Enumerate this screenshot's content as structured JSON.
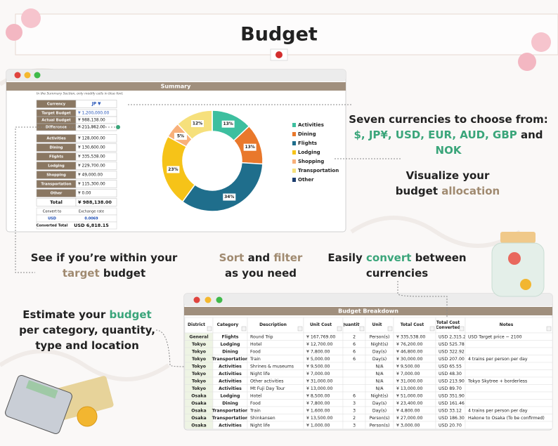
{
  "header": {
    "title": "Budget"
  },
  "summary": {
    "title": "Summary",
    "note": "In the Summary Section, only modify cells in blue font.",
    "rows": [
      [
        "Currency",
        "JP ¥"
      ],
      [
        "Target Budget",
        "¥ 1,200,000.00"
      ],
      [
        "Actual Budget",
        "¥ 988,138.00"
      ],
      [
        "Difference",
        "¥ 211,862.00"
      ],
      [
        "Activities",
        "¥ 128,000.00"
      ],
      [
        "Dining",
        "¥ 130,600.00"
      ],
      [
        "Flights",
        "¥ 335,538.00"
      ],
      [
        "Lodging",
        "¥ 229,700.00"
      ],
      [
        "Shopping",
        "¥ 49,000.00"
      ],
      [
        "Transportation",
        "¥ 115,300.00"
      ],
      [
        "Other",
        "¥ 0.00"
      ],
      [
        "Total",
        "¥ 988,138.00"
      ]
    ],
    "convert": {
      "header": [
        "Convert to",
        "Exchange rate"
      ],
      "row": [
        "USD",
        "0.0069"
      ],
      "total": [
        "Converted Total",
        "USD 6,818.15"
      ]
    }
  },
  "donut": {
    "type": "pie",
    "categories": [
      "Activities",
      "Dining",
      "Flights",
      "Lodging",
      "Shopping",
      "Transportation",
      "Other"
    ],
    "values": [
      13,
      13,
      34,
      23,
      5,
      12,
      0
    ],
    "value_labels": [
      "13%",
      "13%",
      "34%",
      "23%",
      "5%",
      "12%",
      null
    ],
    "colors": [
      "#3dbf9f",
      "#e9782b",
      "#1f6e8c",
      "#f6c318",
      "#f8b07a",
      "#f6e07c",
      "#1c3d6e"
    ]
  },
  "callouts": [
    {
      "lines": [
        [
          {
            "text": "Seven currencies to choose from:",
            "color": "#222222"
          }
        ],
        [
          {
            "text": "$, JP¥, USD, EUR, AUD, GBP",
            "color": "#3aa57a"
          },
          {
            "text": " and",
            "color": "#222222"
          }
        ],
        [
          {
            "text": "NOK",
            "color": "#3aa57a"
          }
        ]
      ]
    },
    {
      "lines": [
        [
          {
            "text": "Visualize your",
            "color": "#222222"
          }
        ],
        [
          {
            "text": "budget ",
            "color": "#222222"
          },
          {
            "text": "allocation",
            "color": "#a08a70"
          }
        ]
      ]
    },
    {
      "lines": [
        [
          {
            "text": "See if you’re within your",
            "color": "#222222"
          }
        ],
        [
          {
            "text": "target",
            "color": "#a08a70"
          },
          {
            "text": " budget",
            "color": "#222222"
          }
        ]
      ]
    },
    {
      "lines": [
        [
          {
            "text": "Sort",
            "color": "#a08a70"
          },
          {
            "text": " and ",
            "color": "#222222"
          },
          {
            "text": "filter",
            "color": "#a08a70"
          }
        ],
        [
          {
            "text": "as you need",
            "color": "#222222"
          }
        ]
      ]
    },
    {
      "lines": [
        [
          {
            "text": "Easily ",
            "color": "#222222"
          },
          {
            "text": "convert",
            "color": "#3aa57a"
          },
          {
            "text": " between",
            "color": "#222222"
          }
        ],
        [
          {
            "text": "currencies",
            "color": "#222222"
          }
        ]
      ]
    },
    {
      "lines": [
        [
          {
            "text": "Estimate your ",
            "color": "#222222"
          },
          {
            "text": "budget",
            "color": "#3aa57a"
          }
        ],
        [
          {
            "text": "per category, quantity,",
            "color": "#222222"
          }
        ],
        [
          {
            "text": "type and location",
            "color": "#222222"
          }
        ]
      ]
    }
  ],
  "breakdown": {
    "title": "Budget Breakdown",
    "columns": [
      "District",
      "Category",
      "Description",
      "Unit Cost",
      "Quantity",
      "Unit",
      "Total Cost",
      "Total Cost (Converted)",
      "Notes"
    ],
    "rows": [
      [
        "General",
        "Flights",
        "Round Trip",
        "¥ 167,769.00",
        "2",
        "Person(s)",
        "¥ 335,538.00",
        "USD 2,315.21",
        "USD Target price ~ 2100"
      ],
      [
        "Tokyo",
        "Lodging",
        "Hotel",
        "¥ 12,700.00",
        "6",
        "Night(s)",
        "¥ 76,200.00",
        "USD 525.78",
        null
      ],
      [
        "Tokyo",
        "Dining",
        "Food",
        "¥ 7,800.00",
        "6",
        "Day(s)",
        "¥ 46,800.00",
        "USD 322.92",
        null
      ],
      [
        "Tokyo",
        "Transportation",
        "Train",
        "¥ 5,000.00",
        "6",
        "Day(s)",
        "¥ 30,000.00",
        "USD 207.00",
        "4 trains per person per day"
      ],
      [
        "Tokyo",
        "Activities",
        "Shrines & museums",
        "¥ 9,500.00",
        null,
        "N/A",
        "¥ 9,500.00",
        "USD 65.55",
        null
      ],
      [
        "Tokyo",
        "Activities",
        "Night life",
        "¥ 7,000.00",
        null,
        "N/A",
        "¥ 7,000.00",
        "USD 48.30",
        null
      ],
      [
        "Tokyo",
        "Activities",
        "Other activities",
        "¥ 31,000.00",
        null,
        "N/A",
        "¥ 31,000.00",
        "USD 213.90",
        "Tokyo Skytree + borderless"
      ],
      [
        "Tokyo",
        "Activities",
        "Mt Fuji Day Tour",
        "¥ 13,000.00",
        null,
        "N/A",
        "¥ 13,000.00",
        "USD 89.70",
        null
      ],
      [
        "Osaka",
        "Lodging",
        "Hotel",
        "¥ 8,500.00",
        "6",
        "Night(s)",
        "¥ 51,000.00",
        "USD 351.90",
        null
      ],
      [
        "Osaka",
        "Dining",
        "Food",
        "¥ 7,800.00",
        "3",
        "Day(s)",
        "¥ 23,400.00",
        "USD 161.46",
        null
      ],
      [
        "Osaka",
        "Transportation",
        "Train",
        "¥ 1,600.00",
        "3",
        "Day(s)",
        "¥ 4,800.00",
        "USD 33.12",
        "4 trains per person per day"
      ],
      [
        "Osaka",
        "Transportation",
        "Shinkansen",
        "¥ 13,500.00",
        "2",
        "Person(s)",
        "¥ 27,000.00",
        "USD 186.30",
        "Hakone to Osaka (To be confirmed)"
      ],
      [
        "Osaka",
        "Activities",
        "Night life",
        "¥ 1,000.00",
        "3",
        "Person(s)",
        "¥ 3,000.00",
        "USD 20.70",
        null
      ]
    ]
  }
}
